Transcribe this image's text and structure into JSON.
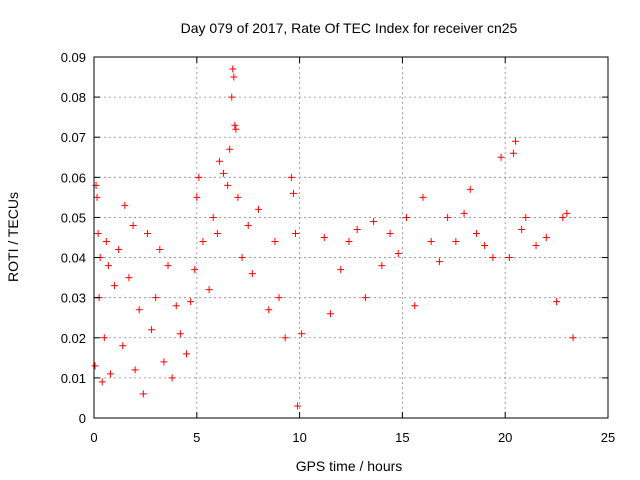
{
  "chart_data": {
    "type": "scatter",
    "title": "Day 079 of 2017, Rate Of TEC Index for receiver cn25",
    "xlabel": "GPS time / hours",
    "ylabel": "ROTI / TECUs",
    "xlim": [
      0,
      25
    ],
    "ylim": [
      0,
      0.09
    ],
    "xticks": [
      "0",
      "5",
      "10",
      "15",
      "20",
      "25"
    ],
    "yticks": [
      "0",
      "0.01",
      "0.02",
      "0.03",
      "0.04",
      "0.05",
      "0.06",
      "0.07",
      "0.08",
      "0.09"
    ],
    "grid": true,
    "marker": "+",
    "color": "#ff0000",
    "series": [
      {
        "points": [
          [
            0.05,
            0.013
          ],
          [
            0.1,
            0.058
          ],
          [
            0.15,
            0.055
          ],
          [
            0.2,
            0.046
          ],
          [
            0.25,
            0.03
          ],
          [
            0.3,
            0.04
          ],
          [
            0.4,
            0.009
          ],
          [
            0.5,
            0.02
          ],
          [
            0.6,
            0.044
          ],
          [
            0.7,
            0.038
          ],
          [
            0.8,
            0.011
          ],
          [
            1.0,
            0.033
          ],
          [
            1.2,
            0.042
          ],
          [
            1.4,
            0.018
          ],
          [
            1.5,
            0.053
          ],
          [
            1.7,
            0.035
          ],
          [
            1.9,
            0.048
          ],
          [
            2.0,
            0.012
          ],
          [
            2.2,
            0.027
          ],
          [
            2.4,
            0.006
          ],
          [
            2.6,
            0.046
          ],
          [
            2.8,
            0.022
          ],
          [
            3.0,
            0.03
          ],
          [
            3.2,
            0.042
          ],
          [
            3.4,
            0.014
          ],
          [
            3.6,
            0.038
          ],
          [
            3.8,
            0.01
          ],
          [
            4.0,
            0.028
          ],
          [
            4.2,
            0.021
          ],
          [
            4.5,
            0.016
          ],
          [
            4.7,
            0.029
          ],
          [
            4.9,
            0.037
          ],
          [
            5.0,
            0.055
          ],
          [
            5.1,
            0.06
          ],
          [
            5.3,
            0.044
          ],
          [
            5.6,
            0.032
          ],
          [
            5.8,
            0.05
          ],
          [
            6.0,
            0.046
          ],
          [
            6.1,
            0.064
          ],
          [
            6.3,
            0.061
          ],
          [
            6.5,
            0.058
          ],
          [
            6.6,
            0.067
          ],
          [
            6.7,
            0.08
          ],
          [
            6.75,
            0.087
          ],
          [
            6.8,
            0.085
          ],
          [
            6.85,
            0.073
          ],
          [
            6.9,
            0.072
          ],
          [
            7.0,
            0.055
          ],
          [
            7.2,
            0.04
          ],
          [
            7.5,
            0.048
          ],
          [
            7.7,
            0.036
          ],
          [
            8.0,
            0.052
          ],
          [
            8.5,
            0.027
          ],
          [
            8.8,
            0.044
          ],
          [
            9.0,
            0.03
          ],
          [
            9.3,
            0.02
          ],
          [
            9.6,
            0.06
          ],
          [
            9.7,
            0.056
          ],
          [
            9.8,
            0.046
          ],
          [
            9.9,
            0.003
          ],
          [
            10.1,
            0.021
          ],
          [
            11.2,
            0.045
          ],
          [
            11.5,
            0.026
          ],
          [
            12.0,
            0.037
          ],
          [
            12.4,
            0.044
          ],
          [
            12.8,
            0.047
          ],
          [
            13.2,
            0.03
          ],
          [
            13.6,
            0.049
          ],
          [
            14.0,
            0.038
          ],
          [
            14.4,
            0.046
          ],
          [
            14.8,
            0.041
          ],
          [
            15.2,
            0.05
          ],
          [
            15.6,
            0.028
          ],
          [
            16.0,
            0.055
          ],
          [
            16.4,
            0.044
          ],
          [
            16.8,
            0.039
          ],
          [
            17.2,
            0.05
          ],
          [
            17.6,
            0.044
          ],
          [
            18.0,
            0.051
          ],
          [
            18.3,
            0.057
          ],
          [
            18.6,
            0.046
          ],
          [
            19.0,
            0.043
          ],
          [
            19.4,
            0.04
          ],
          [
            19.8,
            0.065
          ],
          [
            20.2,
            0.04
          ],
          [
            20.4,
            0.066
          ],
          [
            20.5,
            0.069
          ],
          [
            20.8,
            0.047
          ],
          [
            21.0,
            0.05
          ],
          [
            21.5,
            0.043
          ],
          [
            22.0,
            0.045
          ],
          [
            22.5,
            0.029
          ],
          [
            22.8,
            0.05
          ],
          [
            23.0,
            0.051
          ],
          [
            23.3,
            0.02
          ]
        ]
      }
    ]
  }
}
